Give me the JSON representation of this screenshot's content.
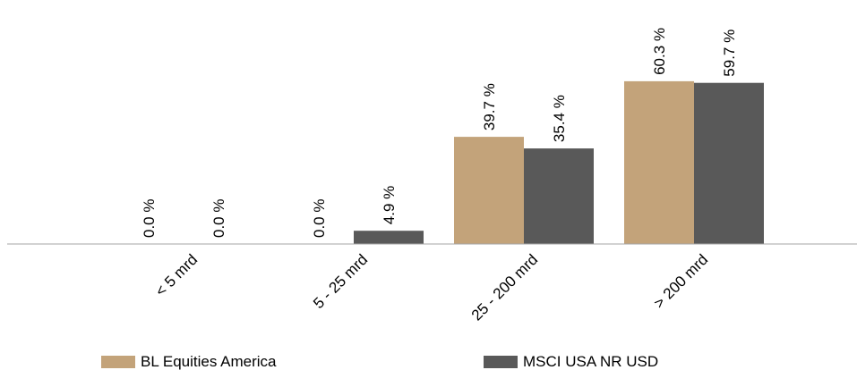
{
  "chart_data": {
    "type": "bar",
    "categories": [
      "< 5 mrd",
      "5 - 25 mrd",
      "25 - 200 mrd",
      "> 200 mrd"
    ],
    "series": [
      {
        "name": "BL Equities America",
        "values": [
          0.0,
          0.0,
          39.7,
          60.3
        ],
        "labels": [
          "0.0 %",
          "0.0 %",
          "39.7 %",
          "60.3 %"
        ],
        "color": "#c3a37a"
      },
      {
        "name": "MSCI USA NR USD",
        "values": [
          0.0,
          4.9,
          35.4,
          59.7
        ],
        "labels": [
          "0.0 %",
          "4.9 %",
          "35.4 %",
          "59.7 %"
        ],
        "color": "#595959"
      }
    ],
    "ylim": [
      0,
      100
    ],
    "grid": false,
    "legend_position": "bottom"
  }
}
